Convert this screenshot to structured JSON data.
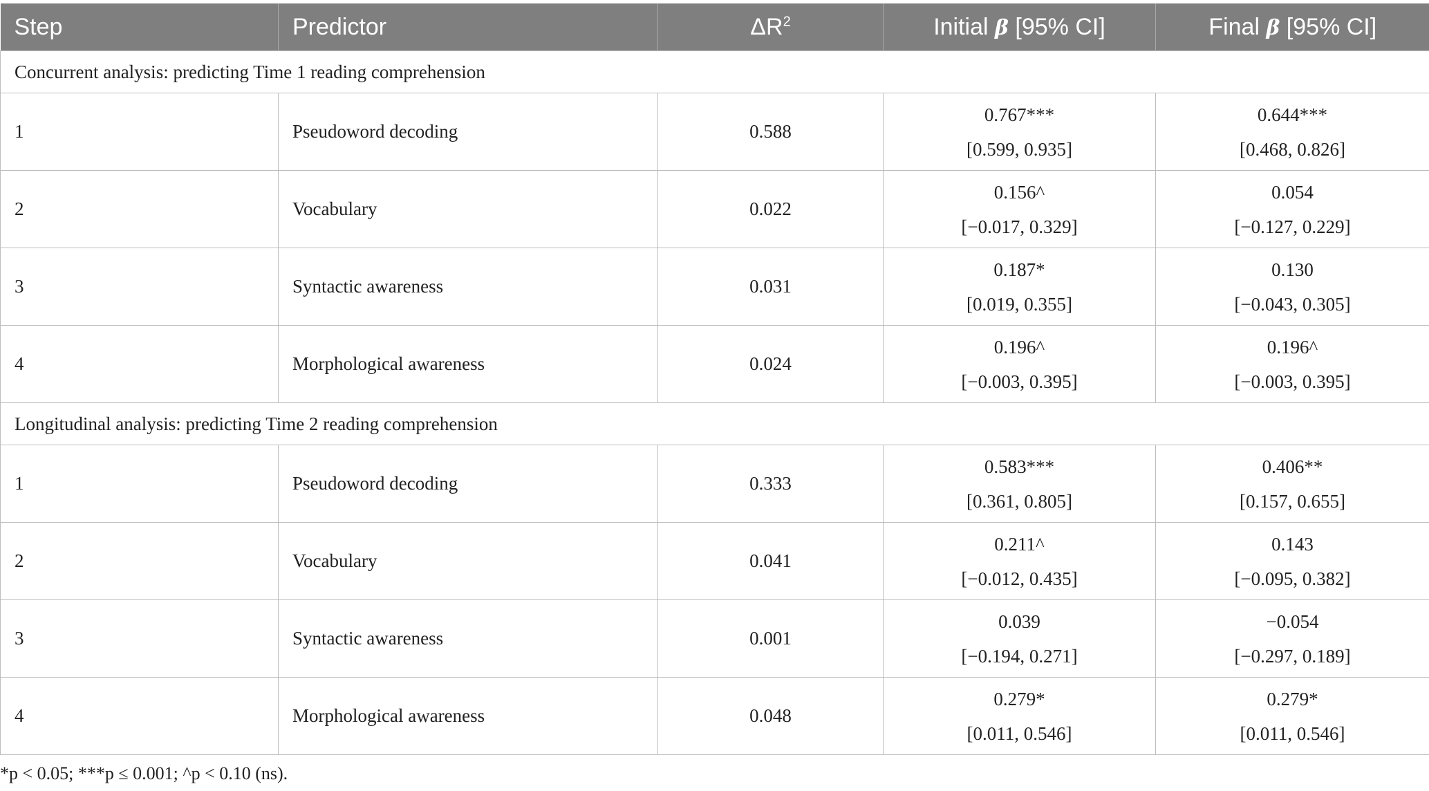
{
  "header": {
    "step": "Step",
    "predictor": "Predictor",
    "delta_r2_symbol": "ΔR",
    "delta_r2_sup": "2",
    "initial_pre": "Initial ",
    "beta": "β",
    "initial_post": " [95% CI]",
    "final_pre": "Final ",
    "final_post": " [95% CI]"
  },
  "sections": [
    {
      "title": "Concurrent analysis: predicting Time 1 reading comprehension",
      "rows": [
        {
          "step": "1",
          "predictor": "Pseudoword decoding",
          "delta_r2": "0.588",
          "initial_beta": "0.767***",
          "initial_ci": "[0.599, 0.935]",
          "final_beta": "0.644***",
          "final_ci": "[0.468, 0.826]"
        },
        {
          "step": "2",
          "predictor": "Vocabulary",
          "delta_r2": "0.022",
          "initial_beta": "0.156^",
          "initial_ci": "[−0.017, 0.329]",
          "final_beta": "0.054",
          "final_ci": "[−0.127, 0.229]"
        },
        {
          "step": "3",
          "predictor": "Syntactic awareness",
          "delta_r2": "0.031",
          "initial_beta": "0.187*",
          "initial_ci": "[0.019, 0.355]",
          "final_beta": "0.130",
          "final_ci": "[−0.043, 0.305]"
        },
        {
          "step": "4",
          "predictor": "Morphological awareness",
          "delta_r2": "0.024",
          "initial_beta": "0.196^",
          "initial_ci": "[−0.003, 0.395]",
          "final_beta": "0.196^",
          "final_ci": "[−0.003, 0.395]"
        }
      ]
    },
    {
      "title": "Longitudinal analysis: predicting Time 2 reading comprehension",
      "rows": [
        {
          "step": "1",
          "predictor": "Pseudoword decoding",
          "delta_r2": "0.333",
          "initial_beta": "0.583***",
          "initial_ci": "[0.361, 0.805]",
          "final_beta": "0.406**",
          "final_ci": "[0.157, 0.655]"
        },
        {
          "step": "2",
          "predictor": "Vocabulary",
          "delta_r2": "0.041",
          "initial_beta": "0.211^",
          "initial_ci": "[−0.012, 0.435]",
          "final_beta": "0.143",
          "final_ci": "[−0.095, 0.382]"
        },
        {
          "step": "3",
          "predictor": "Syntactic awareness",
          "delta_r2": "0.001",
          "initial_beta": "0.039",
          "initial_ci": "[−0.194, 0.271]",
          "final_beta": "−0.054",
          "final_ci": "[−0.297, 0.189]"
        },
        {
          "step": "4",
          "predictor": "Morphological awareness",
          "delta_r2": "0.048",
          "initial_beta": "0.279*",
          "initial_ci": "[0.011, 0.546]",
          "final_beta": "0.279*",
          "final_ci": "[0.011, 0.546]"
        }
      ]
    }
  ],
  "footnote": "*p < 0.05; ***p ≤ 0.001; ^p < 0.10 (ns)."
}
